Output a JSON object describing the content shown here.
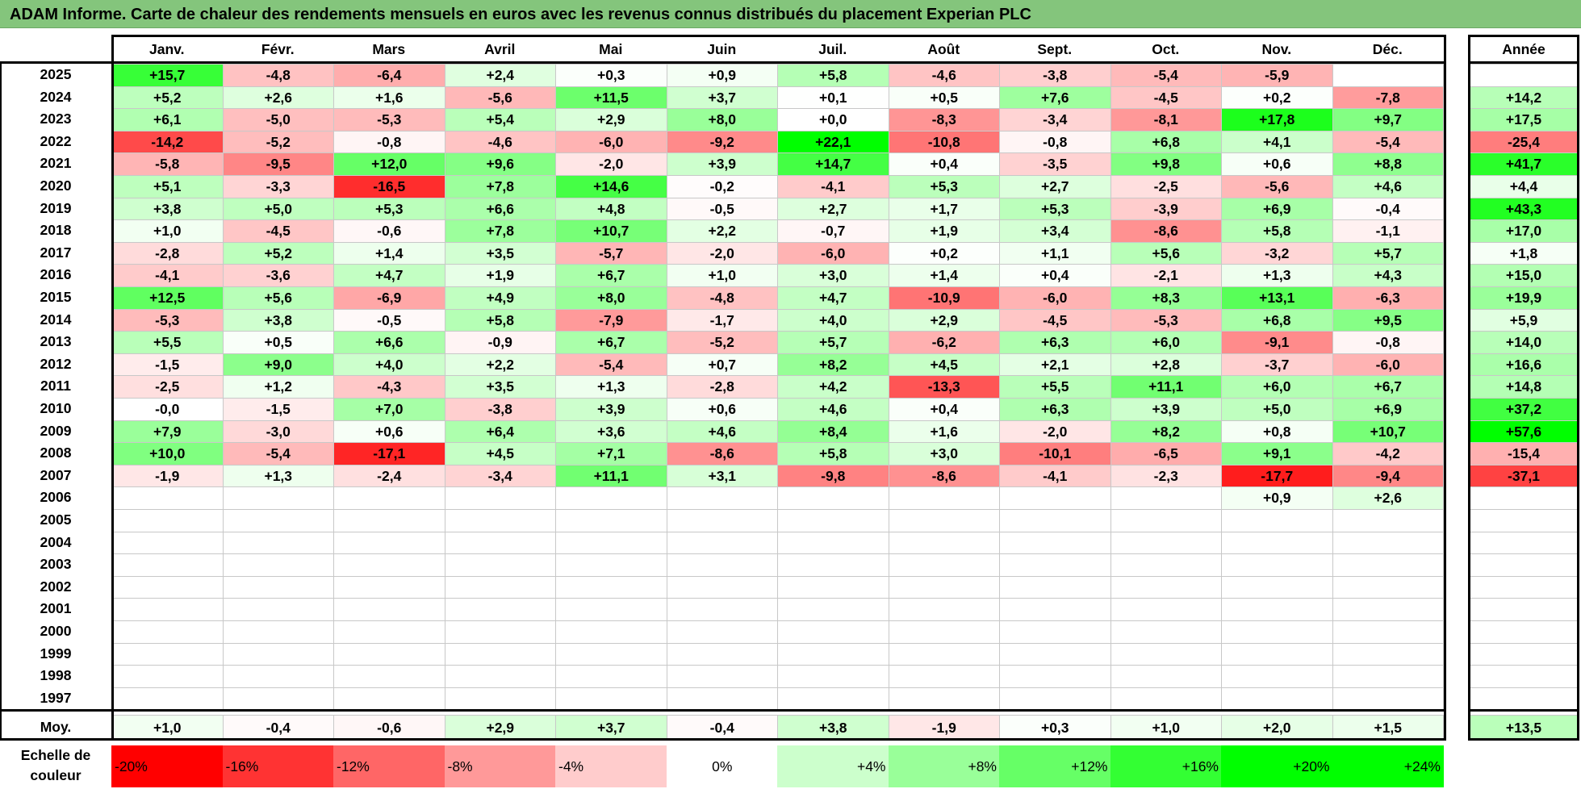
{
  "title": "ADAM Informe. Carte de chaleur des rendements mensuels en euros avec les revenus connus distribués du placement Experian PLC",
  "chart_data": {
    "type": "heatmap",
    "title": "ADAM Informe. Carte de chaleur des rendements mensuels en euros avec les revenus connus distribués du placement Experian PLC",
    "columns": [
      "Janv.",
      "Févr.",
      "Mars",
      "Avril",
      "Mai",
      "Juin",
      "Juil.",
      "Août",
      "Sept.",
      "Oct.",
      "Nov.",
      "Déc."
    ],
    "year_column": "Année",
    "rows": [
      {
        "year": "2025",
        "months": [
          "+15,7",
          "-4,8",
          "-6,4",
          "+2,4",
          "+0,3",
          "+0,9",
          "+5,8",
          "-4,6",
          "-3,8",
          "-5,4",
          "-5,9",
          ""
        ],
        "annual": ""
      },
      {
        "year": "2024",
        "months": [
          "+5,2",
          "+2,6",
          "+1,6",
          "-5,6",
          "+11,5",
          "+3,7",
          "+0,1",
          "+0,5",
          "+7,6",
          "-4,5",
          "+0,2",
          "-7,8"
        ],
        "annual": "+14,2"
      },
      {
        "year": "2023",
        "months": [
          "+6,1",
          "-5,0",
          "-5,3",
          "+5,4",
          "+2,9",
          "+8,0",
          "+0,0",
          "-8,3",
          "-3,4",
          "-8,1",
          "+17,8",
          "+9,7"
        ],
        "annual": "+17,5"
      },
      {
        "year": "2022",
        "months": [
          "-14,2",
          "-5,2",
          "-0,8",
          "-4,6",
          "-6,0",
          "-9,2",
          "+22,1",
          "-10,8",
          "-0,8",
          "+6,8",
          "+4,1",
          "-5,4"
        ],
        "annual": "-25,4"
      },
      {
        "year": "2021",
        "months": [
          "-5,8",
          "-9,5",
          "+12,0",
          "+9,6",
          "-2,0",
          "+3,9",
          "+14,7",
          "+0,4",
          "-3,5",
          "+9,8",
          "+0,6",
          "+8,8"
        ],
        "annual": "+41,7"
      },
      {
        "year": "2020",
        "months": [
          "+5,1",
          "-3,3",
          "-16,5",
          "+7,8",
          "+14,6",
          "-0,2",
          "-4,1",
          "+5,3",
          "+2,7",
          "-2,5",
          "-5,6",
          "+4,6"
        ],
        "annual": "+4,4"
      },
      {
        "year": "2019",
        "months": [
          "+3,8",
          "+5,0",
          "+5,3",
          "+6,6",
          "+4,8",
          "-0,5",
          "+2,7",
          "+1,7",
          "+5,3",
          "-3,9",
          "+6,9",
          "-0,4"
        ],
        "annual": "+43,3"
      },
      {
        "year": "2018",
        "months": [
          "+1,0",
          "-4,5",
          "-0,6",
          "+7,8",
          "+10,7",
          "+2,2",
          "-0,7",
          "+1,9",
          "+3,4",
          "-8,6",
          "+5,8",
          "-1,1"
        ],
        "annual": "+17,0"
      },
      {
        "year": "2017",
        "months": [
          "-2,8",
          "+5,2",
          "+1,4",
          "+3,5",
          "-5,7",
          "-2,0",
          "-6,0",
          "+0,2",
          "+1,1",
          "+5,6",
          "-3,2",
          "+5,7"
        ],
        "annual": "+1,8"
      },
      {
        "year": "2016",
        "months": [
          "-4,1",
          "-3,6",
          "+4,7",
          "+1,9",
          "+6,7",
          "+1,0",
          "+3,0",
          "+1,4",
          "+0,4",
          "-2,1",
          "+1,3",
          "+4,3"
        ],
        "annual": "+15,0"
      },
      {
        "year": "2015",
        "months": [
          "+12,5",
          "+5,6",
          "-6,9",
          "+4,9",
          "+8,0",
          "-4,8",
          "+4,7",
          "-10,9",
          "-6,0",
          "+8,3",
          "+13,1",
          "-6,3"
        ],
        "annual": "+19,9"
      },
      {
        "year": "2014",
        "months": [
          "-5,3",
          "+3,8",
          "-0,5",
          "+5,8",
          "-7,9",
          "-1,7",
          "+4,0",
          "+2,9",
          "-4,5",
          "-5,3",
          "+6,8",
          "+9,5"
        ],
        "annual": "+5,9"
      },
      {
        "year": "2013",
        "months": [
          "+5,5",
          "+0,5",
          "+6,6",
          "-0,9",
          "+6,7",
          "-5,2",
          "+5,7",
          "-6,2",
          "+6,3",
          "+6,0",
          "-9,1",
          "-0,8"
        ],
        "annual": "+14,0"
      },
      {
        "year": "2012",
        "months": [
          "-1,5",
          "+9,0",
          "+4,0",
          "+2,2",
          "-5,4",
          "+0,7",
          "+8,2",
          "+4,5",
          "+2,1",
          "+2,8",
          "-3,7",
          "-6,0"
        ],
        "annual": "+16,6"
      },
      {
        "year": "2011",
        "months": [
          "-2,5",
          "+1,2",
          "-4,3",
          "+3,5",
          "+1,3",
          "-2,8",
          "+4,2",
          "-13,3",
          "+5,5",
          "+11,1",
          "+6,0",
          "+6,7"
        ],
        "annual": "+14,8"
      },
      {
        "year": "2010",
        "months": [
          "-0,0",
          "-1,5",
          "+7,0",
          "-3,8",
          "+3,9",
          "+0,6",
          "+4,6",
          "+0,4",
          "+6,3",
          "+3,9",
          "+5,0",
          "+6,9"
        ],
        "annual": "+37,2"
      },
      {
        "year": "2009",
        "months": [
          "+7,9",
          "-3,0",
          "+0,6",
          "+6,4",
          "+3,6",
          "+4,6",
          "+8,4",
          "+1,6",
          "-2,0",
          "+8,2",
          "+0,8",
          "+10,7"
        ],
        "annual": "+57,6"
      },
      {
        "year": "2008",
        "months": [
          "+10,0",
          "-5,4",
          "-17,1",
          "+4,5",
          "+7,1",
          "-8,6",
          "+5,8",
          "+3,0",
          "-10,1",
          "-6,5",
          "+9,1",
          "-4,2"
        ],
        "annual": "-15,4"
      },
      {
        "year": "2007",
        "months": [
          "-1,9",
          "+1,3",
          "-2,4",
          "-3,4",
          "+11,1",
          "+3,1",
          "-9,8",
          "-8,6",
          "-4,1",
          "-2,3",
          "-17,7",
          "-9,4"
        ],
        "annual": "-37,1"
      },
      {
        "year": "2006",
        "months": [
          "",
          "",
          "",
          "",
          "",
          "",
          "",
          "",
          "",
          "",
          "+0,9",
          "+2,6"
        ],
        "annual": ""
      },
      {
        "year": "2005",
        "months": [
          "",
          "",
          "",
          "",
          "",
          "",
          "",
          "",
          "",
          "",
          "",
          ""
        ],
        "annual": ""
      },
      {
        "year": "2004",
        "months": [
          "",
          "",
          "",
          "",
          "",
          "",
          "",
          "",
          "",
          "",
          "",
          ""
        ],
        "annual": ""
      },
      {
        "year": "2003",
        "months": [
          "",
          "",
          "",
          "",
          "",
          "",
          "",
          "",
          "",
          "",
          "",
          ""
        ],
        "annual": ""
      },
      {
        "year": "2002",
        "months": [
          "",
          "",
          "",
          "",
          "",
          "",
          "",
          "",
          "",
          "",
          "",
          ""
        ],
        "annual": ""
      },
      {
        "year": "2001",
        "months": [
          "",
          "",
          "",
          "",
          "",
          "",
          "",
          "",
          "",
          "",
          "",
          ""
        ],
        "annual": ""
      },
      {
        "year": "2000",
        "months": [
          "",
          "",
          "",
          "",
          "",
          "",
          "",
          "",
          "",
          "",
          "",
          ""
        ],
        "annual": ""
      },
      {
        "year": "1999",
        "months": [
          "",
          "",
          "",
          "",
          "",
          "",
          "",
          "",
          "",
          "",
          "",
          ""
        ],
        "annual": ""
      },
      {
        "year": "1998",
        "months": [
          "",
          "",
          "",
          "",
          "",
          "",
          "",
          "",
          "",
          "",
          "",
          ""
        ],
        "annual": ""
      },
      {
        "year": "1997",
        "months": [
          "",
          "",
          "",
          "",
          "",
          "",
          "",
          "",
          "",
          "",
          "",
          ""
        ],
        "annual": ""
      }
    ],
    "average": {
      "label": "Moy.",
      "months": [
        "+1,0",
        "-0,4",
        "-0,6",
        "+2,9",
        "+3,7",
        "-0,4",
        "+3,8",
        "-1,9",
        "+0,3",
        "+1,0",
        "+2,0",
        "+1,5"
      ],
      "annual": "+13,5"
    },
    "color_scale": {
      "label": "Echelle de couleur",
      "stops": [
        "-20%",
        "-16%",
        "-12%",
        "-8%",
        "-4%",
        "0%",
        "+4%",
        "+8%",
        "+12%",
        "+16%",
        "+20%",
        "+24%"
      ],
      "stop_values": [
        -20,
        -16,
        -12,
        -8,
        -4,
        0,
        4,
        8,
        12,
        16,
        20,
        24
      ],
      "negative_color": "#ff0000",
      "positive_color": "#00ff00",
      "neutral_color": "#ffffff"
    }
  }
}
